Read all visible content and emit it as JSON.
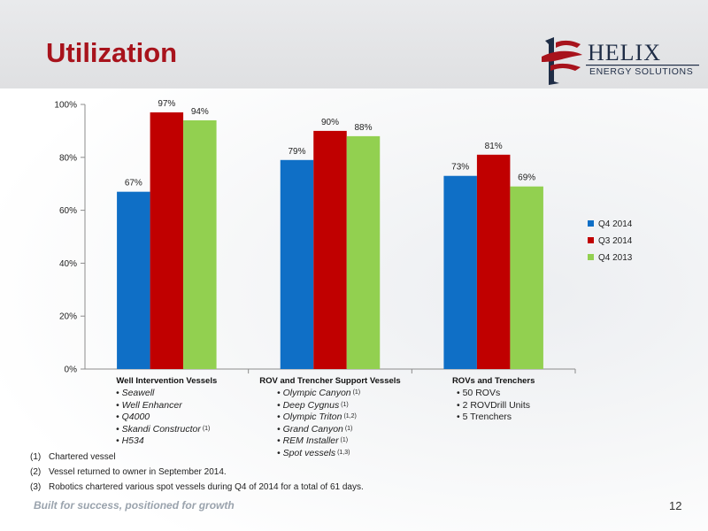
{
  "slide": {
    "title": "Utilization",
    "tagline": "Built for success, positioned for growth",
    "page_number": "12"
  },
  "logo": {
    "name": "HELIX",
    "subtitle": "ENERGY SOLUTIONS"
  },
  "colors": {
    "title": "#a8131c",
    "series": [
      "#0f6fc6",
      "#c00000",
      "#92d050"
    ]
  },
  "chart_data": {
    "type": "bar",
    "categories": [
      "Well Intervention Vessels",
      "ROV and Trencher Support Vessels",
      "ROVs and Trenchers"
    ],
    "series": [
      {
        "name": "Q4 2014",
        "values": [
          67,
          79,
          73
        ]
      },
      {
        "name": "Q3 2014",
        "values": [
          97,
          90,
          81
        ]
      },
      {
        "name": "Q4 2013",
        "values": [
          94,
          88,
          69
        ]
      }
    ],
    "value_suffix": "%",
    "y_ticks": [
      "0%",
      "20%",
      "40%",
      "60%",
      "80%",
      "100%"
    ],
    "ylim": [
      0,
      100
    ],
    "grid": false,
    "legend_position": "right"
  },
  "category_details": [
    {
      "category": "Well Intervention Vessels",
      "italic": true,
      "items": [
        {
          "text": "Seawell",
          "note": ""
        },
        {
          "text": "Well Enhancer",
          "note": ""
        },
        {
          "text": "Q4000",
          "note": ""
        },
        {
          "text": "Skandi Constructor",
          "note": "(1)"
        },
        {
          "text": "H534",
          "note": ""
        }
      ]
    },
    {
      "category": "ROV and Trencher Support Vessels",
      "italic": true,
      "items": [
        {
          "text": "Olympic Canyon",
          "note": "(1)"
        },
        {
          "text": "Deep Cygnus",
          "note": "(1)"
        },
        {
          "text": "Olympic Triton",
          "note": "(1,2)"
        },
        {
          "text": "Grand Canyon",
          "note": "(1)"
        },
        {
          "text": "REM Installer",
          "note": "(1)"
        },
        {
          "text": "Spot vessels",
          "note": "(1,3)"
        }
      ]
    },
    {
      "category": "ROVs and Trenchers",
      "italic": false,
      "items": [
        {
          "text": "50 ROVs",
          "note": ""
        },
        {
          "text": "2 ROVDrill Units",
          "note": ""
        },
        {
          "text": "5 Trenchers",
          "note": ""
        }
      ]
    }
  ],
  "footnotes": [
    {
      "num": "(1)",
      "text": "Chartered vessel"
    },
    {
      "num": "(2)",
      "text": "Vessel returned to owner in September 2014."
    },
    {
      "num": "(3)",
      "text": "Robotics chartered various spot vessels during Q4 of 2014 for a total of 61 days."
    }
  ]
}
